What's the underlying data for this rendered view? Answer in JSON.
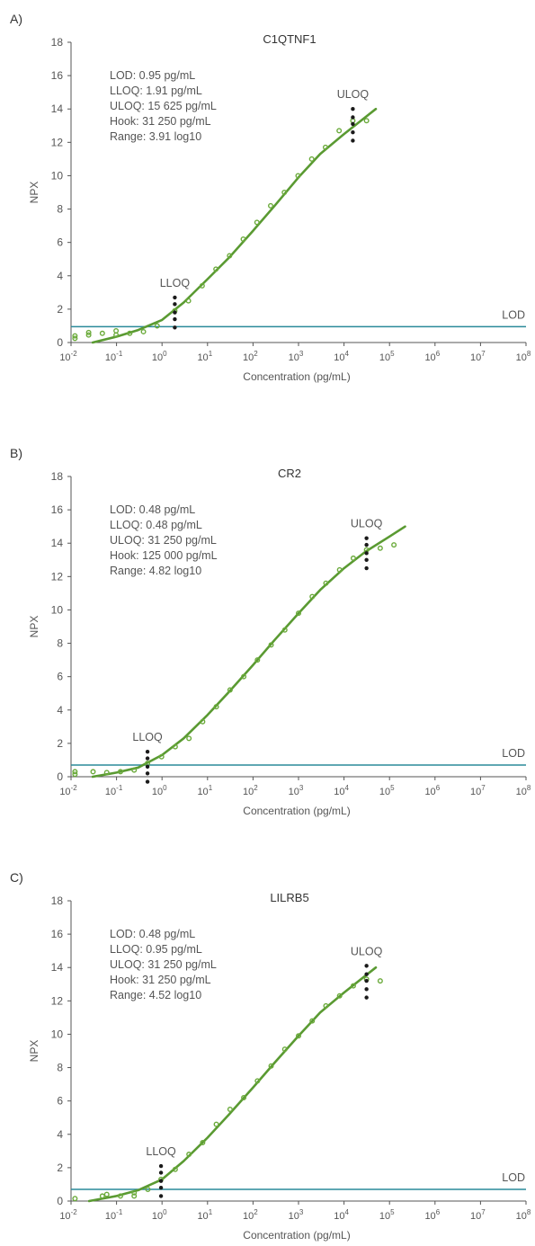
{
  "chart_data": [
    {
      "panel_label": "A)",
      "type": "scatter",
      "title": "C1QTNF1",
      "xlabel": "Concentration (pg/mL)",
      "ylabel": "NPX",
      "xscale": "log10",
      "xlim": [
        0.01,
        100000000
      ],
      "ylim": [
        0,
        18
      ],
      "x_ticks": [
        {
          "base": "10",
          "exp": "-2"
        },
        {
          "base": "10",
          "exp": "-1"
        },
        {
          "base": "10",
          "exp": "0"
        },
        {
          "base": "10",
          "exp": "1"
        },
        {
          "base": "10",
          "exp": "2"
        },
        {
          "base": "10",
          "exp": "3"
        },
        {
          "base": "10",
          "exp": "4"
        },
        {
          "base": "10",
          "exp": "5"
        },
        {
          "base": "10",
          "exp": "6"
        },
        {
          "base": "10",
          "exp": "7"
        },
        {
          "base": "10",
          "exp": "8"
        }
      ],
      "y_ticks": [
        "0",
        "2",
        "4",
        "6",
        "8",
        "10",
        "12",
        "14",
        "16",
        "18"
      ],
      "stats": [
        "LOD: 0.95 pg/mL",
        "LLOQ: 1.91 pg/mL",
        "ULOQ: 15 625 pg/mL",
        "Hook: 31 250 pg/mL",
        "Range: 3.91 log10"
      ],
      "lod_label": "LOD",
      "lod_value": 0.95,
      "lloq_label": "LLOQ",
      "lloq_conc": 1.91,
      "lloq_dots": [
        0.9,
        1.4,
        1.8,
        2.3,
        2.7
      ],
      "uloq_label": "ULOQ",
      "uloq_conc": 15625,
      "uloq_dots": [
        12.1,
        12.6,
        13.1,
        13.5,
        14.0
      ],
      "points": [
        {
          "x": 0.0122,
          "y": 0.25
        },
        {
          "x": 0.0122,
          "y": 0.4
        },
        {
          "x": 0.0244,
          "y": 0.45
        },
        {
          "x": 0.0244,
          "y": 0.6
        },
        {
          "x": 0.0488,
          "y": 0.55
        },
        {
          "x": 0.0977,
          "y": 0.45
        },
        {
          "x": 0.0977,
          "y": 0.7
        },
        {
          "x": 0.195,
          "y": 0.55
        },
        {
          "x": 0.391,
          "y": 0.65
        },
        {
          "x": 0.781,
          "y": 1.0
        },
        {
          "x": 1.91,
          "y": 1.9
        },
        {
          "x": 3.81,
          "y": 2.5
        },
        {
          "x": 7.63,
          "y": 3.4
        },
        {
          "x": 15.3,
          "y": 4.4
        },
        {
          "x": 30.5,
          "y": 5.2
        },
        {
          "x": 61,
          "y": 6.2
        },
        {
          "x": 122,
          "y": 7.2
        },
        {
          "x": 244,
          "y": 8.2
        },
        {
          "x": 488,
          "y": 9.0
        },
        {
          "x": 977,
          "y": 10.0
        },
        {
          "x": 1950,
          "y": 11.0
        },
        {
          "x": 3910,
          "y": 11.7
        },
        {
          "x": 7810,
          "y": 12.7
        },
        {
          "x": 15625,
          "y": 13.3
        },
        {
          "x": 31250,
          "y": 13.3
        }
      ],
      "fit_curve": [
        {
          "x": 0.03,
          "y": 0.0
        },
        {
          "x": 0.1,
          "y": 0.35
        },
        {
          "x": 0.3,
          "y": 0.75
        },
        {
          "x": 1,
          "y": 1.35
        },
        {
          "x": 3,
          "y": 2.4
        },
        {
          "x": 10,
          "y": 3.8
        },
        {
          "x": 30,
          "y": 5.1
        },
        {
          "x": 100,
          "y": 6.7
        },
        {
          "x": 300,
          "y": 8.2
        },
        {
          "x": 1000,
          "y": 9.9
        },
        {
          "x": 3000,
          "y": 11.3
        },
        {
          "x": 10000,
          "y": 12.5
        },
        {
          "x": 50000,
          "y": 14.0
        }
      ]
    },
    {
      "panel_label": "B)",
      "type": "scatter",
      "title": "CR2",
      "xlabel": "Concentration (pg/mL)",
      "ylabel": "NPX",
      "xscale": "log10",
      "xlim": [
        0.01,
        100000000
      ],
      "ylim": [
        0,
        18
      ],
      "x_ticks": [
        {
          "base": "10",
          "exp": "-2"
        },
        {
          "base": "10",
          "exp": "-1"
        },
        {
          "base": "10",
          "exp": "0"
        },
        {
          "base": "10",
          "exp": "1"
        },
        {
          "base": "10",
          "exp": "2"
        },
        {
          "base": "10",
          "exp": "3"
        },
        {
          "base": "10",
          "exp": "4"
        },
        {
          "base": "10",
          "exp": "5"
        },
        {
          "base": "10",
          "exp": "6"
        },
        {
          "base": "10",
          "exp": "7"
        },
        {
          "base": "10",
          "exp": "8"
        }
      ],
      "y_ticks": [
        "0",
        "2",
        "4",
        "6",
        "8",
        "10",
        "12",
        "14",
        "16",
        "18"
      ],
      "stats": [
        "LOD: 0.48 pg/mL",
        "LLOQ: 0.48 pg/mL",
        "ULOQ: 31 250 pg/mL",
        "Hook: 125 000 pg/mL",
        "Range: 4.82 log10"
      ],
      "lod_label": "LOD",
      "lod_value": 0.7,
      "lloq_label": "LLOQ",
      "lloq_conc": 0.48,
      "lloq_dots": [
        -0.3,
        0.2,
        0.6,
        1.1,
        1.5
      ],
      "uloq_label": "ULOQ",
      "uloq_conc": 31250,
      "uloq_dots": [
        12.5,
        13.0,
        13.4,
        13.9,
        14.3
      ],
      "points": [
        {
          "x": 0.0122,
          "y": 0.15
        },
        {
          "x": 0.0122,
          "y": 0.3
        },
        {
          "x": 0.0305,
          "y": 0.3
        },
        {
          "x": 0.061,
          "y": 0.25
        },
        {
          "x": 0.122,
          "y": 0.3
        },
        {
          "x": 0.244,
          "y": 0.4
        },
        {
          "x": 0.48,
          "y": 0.8
        },
        {
          "x": 0.977,
          "y": 1.2
        },
        {
          "x": 1.95,
          "y": 1.8
        },
        {
          "x": 3.91,
          "y": 2.3
        },
        {
          "x": 7.81,
          "y": 3.3
        },
        {
          "x": 15.6,
          "y": 4.2
        },
        {
          "x": 31.3,
          "y": 5.2
        },
        {
          "x": 62.5,
          "y": 6.0
        },
        {
          "x": 125,
          "y": 7.0
        },
        {
          "x": 250,
          "y": 7.9
        },
        {
          "x": 500,
          "y": 8.8
        },
        {
          "x": 1000,
          "y": 9.8
        },
        {
          "x": 2000,
          "y": 10.8
        },
        {
          "x": 4000,
          "y": 11.6
        },
        {
          "x": 8000,
          "y": 12.4
        },
        {
          "x": 16000,
          "y": 13.1
        },
        {
          "x": 31250,
          "y": 13.6
        },
        {
          "x": 62500,
          "y": 13.7
        },
        {
          "x": 125000,
          "y": 13.9
        }
      ],
      "fit_curve": [
        {
          "x": 0.03,
          "y": 0.0
        },
        {
          "x": 0.1,
          "y": 0.25
        },
        {
          "x": 0.3,
          "y": 0.55
        },
        {
          "x": 1,
          "y": 1.3
        },
        {
          "x": 3,
          "y": 2.3
        },
        {
          "x": 10,
          "y": 3.7
        },
        {
          "x": 30,
          "y": 5.1
        },
        {
          "x": 100,
          "y": 6.7
        },
        {
          "x": 300,
          "y": 8.2
        },
        {
          "x": 1000,
          "y": 9.8
        },
        {
          "x": 3000,
          "y": 11.2
        },
        {
          "x": 10000,
          "y": 12.5
        },
        {
          "x": 30000,
          "y": 13.5
        },
        {
          "x": 100000,
          "y": 14.4
        },
        {
          "x": 220000,
          "y": 15.0
        }
      ]
    },
    {
      "panel_label": "C)",
      "type": "scatter",
      "title": "LILRB5",
      "xlabel": "Concentration (pg/mL)",
      "ylabel": "NPX",
      "xscale": "log10",
      "xlim": [
        0.01,
        100000000
      ],
      "ylim": [
        0,
        18
      ],
      "x_ticks": [
        {
          "base": "10",
          "exp": "-2"
        },
        {
          "base": "10",
          "exp": "-1"
        },
        {
          "base": "10",
          "exp": "0"
        },
        {
          "base": "10",
          "exp": "1"
        },
        {
          "base": "10",
          "exp": "2"
        },
        {
          "base": "10",
          "exp": "3"
        },
        {
          "base": "10",
          "exp": "4"
        },
        {
          "base": "10",
          "exp": "5"
        },
        {
          "base": "10",
          "exp": "6"
        },
        {
          "base": "10",
          "exp": "7"
        },
        {
          "base": "10",
          "exp": "8"
        }
      ],
      "y_ticks": [
        "0",
        "2",
        "4",
        "6",
        "8",
        "10",
        "12",
        "14",
        "16",
        "18"
      ],
      "stats": [
        "LOD: 0.48 pg/mL",
        "LLOQ: 0.95 pg/mL",
        "ULOQ: 31 250 pg/mL",
        "Hook: 31 250 pg/mL",
        "Range: 4.52 log10"
      ],
      "lod_label": "LOD",
      "lod_value": 0.7,
      "lloq_label": "LLOQ",
      "lloq_conc": 0.95,
      "lloq_dots": [
        0.3,
        0.8,
        1.2,
        1.7,
        2.1
      ],
      "uloq_label": "ULOQ",
      "uloq_conc": 31250,
      "uloq_dots": [
        12.2,
        12.7,
        13.2,
        13.6,
        14.1
      ],
      "points": [
        {
          "x": 0.0122,
          "y": 0.15
        },
        {
          "x": 0.0488,
          "y": 0.3
        },
        {
          "x": 0.061,
          "y": 0.4
        },
        {
          "x": 0.122,
          "y": 0.3
        },
        {
          "x": 0.244,
          "y": 0.3
        },
        {
          "x": 0.244,
          "y": 0.5
        },
        {
          "x": 0.488,
          "y": 0.7
        },
        {
          "x": 0.95,
          "y": 1.3
        },
        {
          "x": 1.95,
          "y": 1.9
        },
        {
          "x": 3.91,
          "y": 2.8
        },
        {
          "x": 7.81,
          "y": 3.5
        },
        {
          "x": 15.6,
          "y": 4.6
        },
        {
          "x": 31.3,
          "y": 5.5
        },
        {
          "x": 62.5,
          "y": 6.2
        },
        {
          "x": 125,
          "y": 7.2
        },
        {
          "x": 250,
          "y": 8.1
        },
        {
          "x": 500,
          "y": 9.1
        },
        {
          "x": 1000,
          "y": 9.9
        },
        {
          "x": 2000,
          "y": 10.8
        },
        {
          "x": 4000,
          "y": 11.7
        },
        {
          "x": 8000,
          "y": 12.3
        },
        {
          "x": 16000,
          "y": 12.9
        },
        {
          "x": 31250,
          "y": 13.3
        },
        {
          "x": 62500,
          "y": 13.2
        }
      ],
      "fit_curve": [
        {
          "x": 0.025,
          "y": 0.0
        },
        {
          "x": 0.1,
          "y": 0.3
        },
        {
          "x": 0.3,
          "y": 0.65
        },
        {
          "x": 1,
          "y": 1.3
        },
        {
          "x": 3,
          "y": 2.4
        },
        {
          "x": 10,
          "y": 3.8
        },
        {
          "x": 30,
          "y": 5.2
        },
        {
          "x": 100,
          "y": 6.8
        },
        {
          "x": 300,
          "y": 8.3
        },
        {
          "x": 1000,
          "y": 9.9
        },
        {
          "x": 3000,
          "y": 11.3
        },
        {
          "x": 10000,
          "y": 12.5
        },
        {
          "x": 50000,
          "y": 14.0
        }
      ]
    }
  ],
  "style": {
    "curve_color": "#5a9a32",
    "point_color": "#6aaa3a",
    "lod_line_color": "#2a8a9a",
    "marker_color": "#1a1a1a",
    "axis_color": "#555555",
    "text_color": "#555555",
    "panel_label_color": "#333333"
  }
}
